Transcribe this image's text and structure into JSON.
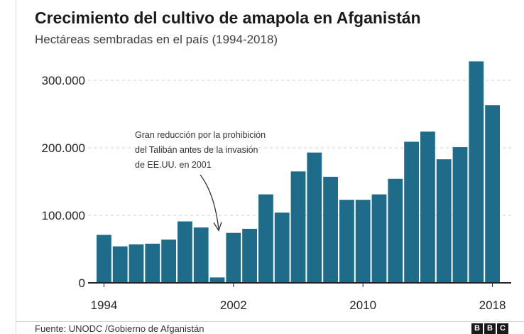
{
  "title": "Crecimiento del cultivo de amapola en Afganistán",
  "subtitle": "Hectáreas sembradas en el país (1994-2018)",
  "source": "Fuente: UNODC /Gobierno de Afganistán",
  "logo": [
    "B",
    "B",
    "C"
  ],
  "colors": {
    "bar": "#1f6b8a",
    "grid": "#d0d0d0",
    "axis": "#222222"
  },
  "chart_data": {
    "type": "bar",
    "title": "Crecimiento del cultivo de amapola en Afganistán",
    "subtitle": "Hectáreas sembradas en el país (1994-2018)",
    "xlabel": "",
    "ylabel": "",
    "ylim": [
      0,
      340000
    ],
    "yticks": [
      0,
      100000,
      200000,
      300000
    ],
    "ytick_labels": [
      "0",
      "100.000",
      "200.000",
      "300.000"
    ],
    "xtick_years": [
      1994,
      2002,
      2010,
      2018
    ],
    "xtick_labels": [
      "1994",
      "2002",
      "2010",
      "2018"
    ],
    "grid": true,
    "categories": [
      1994,
      1995,
      1996,
      1997,
      1998,
      1999,
      2000,
      2001,
      2002,
      2003,
      2004,
      2005,
      2006,
      2007,
      2008,
      2009,
      2010,
      2011,
      2012,
      2013,
      2014,
      2015,
      2016,
      2017,
      2018
    ],
    "values": [
      71000,
      54000,
      57000,
      58000,
      64000,
      91000,
      82000,
      8000,
      74000,
      80000,
      131000,
      104000,
      165000,
      193000,
      157000,
      123000,
      123000,
      131000,
      154000,
      209000,
      224000,
      183000,
      201000,
      328000,
      263000
    ],
    "annotation": {
      "lines": [
        "Gran reducción por la prohibición",
        "del Talibán antes de la invasión",
        "de EE.UU. en 2001"
      ],
      "year": 2001
    }
  }
}
